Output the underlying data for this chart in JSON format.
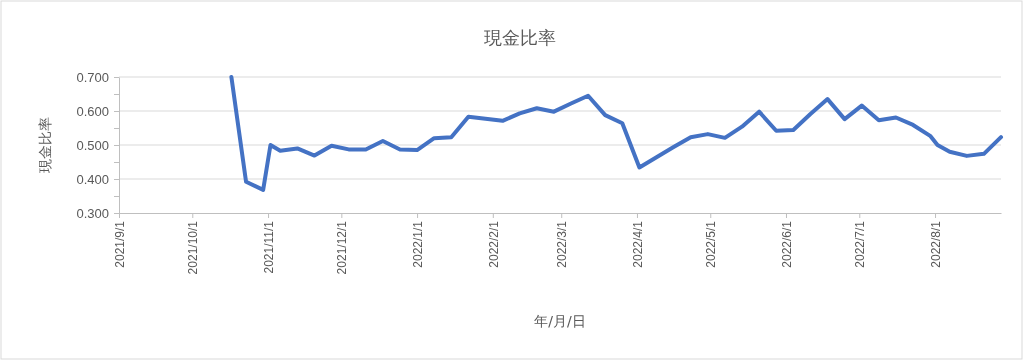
{
  "chart_data": {
    "type": "line",
    "title": "現金比率",
    "xlabel": "年/月/日",
    "ylabel": "現金比率",
    "x": [
      "2021-10-17",
      "2021-10-23",
      "2021-10-30",
      "2021-11-02",
      "2021-11-06",
      "2021-11-13",
      "2021-11-20",
      "2021-11-27",
      "2021-12-04",
      "2021-12-11",
      "2021-12-18",
      "2021-12-25",
      "2022-01-01",
      "2022-01-08",
      "2022-01-15",
      "2022-01-22",
      "2022-01-29",
      "2022-02-05",
      "2022-02-12",
      "2022-02-19",
      "2022-02-26",
      "2022-03-05",
      "2022-03-12",
      "2022-03-19",
      "2022-03-26",
      "2022-04-02",
      "2022-04-09",
      "2022-04-16",
      "2022-04-23",
      "2022-04-30",
      "2022-05-07",
      "2022-05-14",
      "2022-05-21",
      "2022-05-28",
      "2022-06-04",
      "2022-06-11",
      "2022-06-18",
      "2022-06-25",
      "2022-07-02",
      "2022-07-09",
      "2022-07-16",
      "2022-07-23",
      "2022-07-30",
      "2022-08-02",
      "2022-08-07",
      "2022-08-14",
      "2022-08-21",
      "2022-08-28"
    ],
    "series": [
      {
        "color": "#4472c4",
        "values": [
          0.7,
          0.392,
          0.368,
          0.5,
          0.483,
          0.49,
          0.469,
          0.498,
          0.487,
          0.487,
          0.512,
          0.487,
          0.485,
          0.52,
          0.523,
          0.583,
          0.577,
          0.571,
          0.593,
          0.608,
          0.598,
          0.622,
          0.645,
          0.588,
          0.564,
          0.434,
          0.464,
          0.494,
          0.523,
          0.532,
          0.521,
          0.554,
          0.598,
          0.542,
          0.544,
          0.591,
          0.635,
          0.576,
          0.616,
          0.573,
          0.581,
          0.559,
          0.527,
          0.5,
          0.48,
          0.468,
          0.474,
          0.523
        ]
      }
    ],
    "xlim": [
      "2021-09-01",
      "2022-08-28"
    ],
    "xticks": [
      {
        "value": "2021-09-01",
        "label": "2021/9/1"
      },
      {
        "value": "2021-10-01",
        "label": "2021/10/1"
      },
      {
        "value": "2021-11-01",
        "label": "2021/11/1"
      },
      {
        "value": "2021-12-01",
        "label": "2021/12/1"
      },
      {
        "value": "2022-01-01",
        "label": "2022/1/1"
      },
      {
        "value": "2022-02-01",
        "label": "2022/2/1"
      },
      {
        "value": "2022-03-01",
        "label": "2022/3/1"
      },
      {
        "value": "2022-04-01",
        "label": "2022/4/1"
      },
      {
        "value": "2022-05-01",
        "label": "2022/5/1"
      },
      {
        "value": "2022-06-01",
        "label": "2022/6/1"
      },
      {
        "value": "2022-07-01",
        "label": "2022/7/1"
      },
      {
        "value": "2022-08-01",
        "label": "2022/8/1"
      }
    ],
    "ylim": [
      0.3,
      0.7
    ],
    "yticks": [
      {
        "value": 0.3,
        "label": "0.300"
      },
      {
        "value": 0.35,
        "label": null
      },
      {
        "value": 0.4,
        "label": "0.400"
      },
      {
        "value": 0.45,
        "label": null
      },
      {
        "value": 0.5,
        "label": "0.500"
      },
      {
        "value": 0.55,
        "label": null
      },
      {
        "value": 0.6,
        "label": "0.600"
      },
      {
        "value": 0.65,
        "label": null
      },
      {
        "value": 0.7,
        "label": "0.700"
      }
    ],
    "grid": "y",
    "marker": "none",
    "line_style": "solid"
  }
}
